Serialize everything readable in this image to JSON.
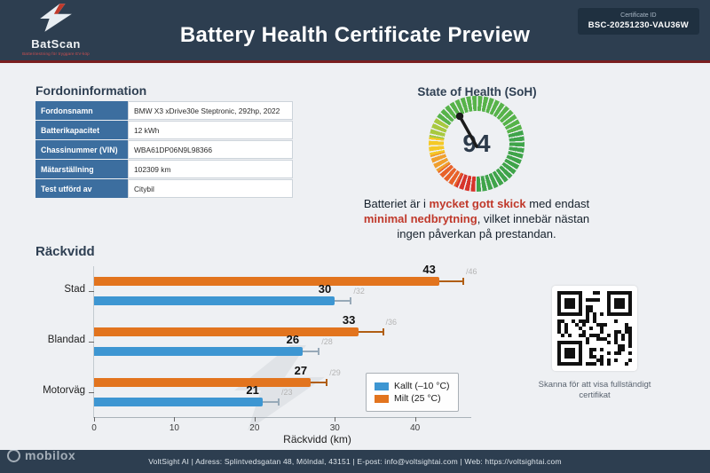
{
  "header": {
    "brand": {
      "name": "BatScan",
      "tagline": "Batteritestning för tryggare EV-köp"
    },
    "title": "Battery Health Certificate Preview",
    "certificate": {
      "label": "Certificate ID",
      "id": "BSC-20251230-VAU36W"
    }
  },
  "vehicle_info": {
    "heading": "Fordoninformation",
    "rows": [
      {
        "label": "Fordonsnamn",
        "value": "BMW X3 xDrive30e Steptronic, 292hp, 2022"
      },
      {
        "label": "Batterikapacitet",
        "value": "12 kWh"
      },
      {
        "label": "Chassinummer (VIN)",
        "value": "WBA61DP06N9L98366"
      },
      {
        "label": "Mätarställning",
        "value": "102309 km"
      },
      {
        "label": "Test utförd av",
        "value": "Citybil"
      }
    ]
  },
  "soh": {
    "heading": "State of Health (SoH)",
    "value": "94",
    "desc": {
      "l1a": "Batteriet är i ",
      "l1b": "mycket gott skick",
      "l1c": " med endast",
      "l2a": "minimal nedbrytning",
      "l2b": ", vilket innebär nästan",
      "l3": "ingen påverkan på prestandan."
    }
  },
  "range_section": {
    "heading": "Räckvidd"
  },
  "chart_data": {
    "type": "bar",
    "orientation": "horizontal",
    "title": "",
    "xlabel": "Räckvidd (km)",
    "ylabel": "",
    "categories": [
      "Stad",
      "Blandad",
      "Motorväg"
    ],
    "series": [
      {
        "name": "Milt (25 °C)",
        "color": "#e2741e",
        "error_color": "#b05e12",
        "values": [
          43,
          33,
          27
        ],
        "error_max": [
          46,
          36,
          29
        ]
      },
      {
        "name": "Kallt (–10 °C)",
        "color": "#3d96d2",
        "error_color": "#97a9b8",
        "values": [
          30,
          26,
          21
        ],
        "error_max": [
          32,
          28,
          23
        ]
      }
    ],
    "xticks": [
      0,
      10,
      20,
      30,
      40
    ],
    "xlim": [
      0,
      47
    ],
    "grid": false,
    "legend_position": "lower right",
    "legend": [
      {
        "label": "Kallt (–10 °C)",
        "color": "#3d96d2"
      },
      {
        "label": "Milt (25 °C)",
        "color": "#e2741e"
      }
    ]
  },
  "qr": {
    "caption_line1": "Skanna för att visa fullständigt",
    "caption_line2": "certifikat"
  },
  "footer": {
    "text": "VoltSight AI | Adress: Splintvedsgatan 48, Mölndal, 43151 | E-post: info@voltsightai.com | Web: https://voltsightai.com"
  },
  "watermark": {
    "text": "mobilox"
  },
  "colors": {
    "header": "#2d3e50",
    "accent_red": "#c0392b",
    "table_label_bg": "#3c6e9f"
  }
}
